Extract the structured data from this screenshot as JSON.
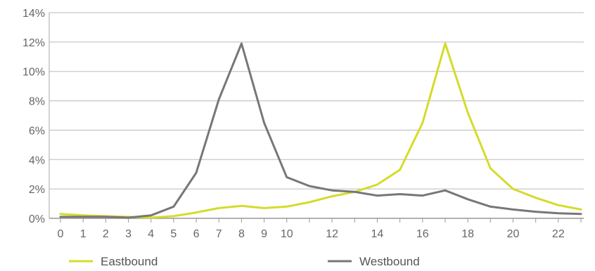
{
  "chart_data": {
    "type": "line",
    "title": "",
    "xlabel": "",
    "ylabel": "",
    "x": [
      0,
      1,
      2,
      3,
      4,
      5,
      6,
      7,
      8,
      9,
      10,
      11,
      12,
      13,
      14,
      15,
      16,
      17,
      18,
      19,
      20,
      21,
      22,
      23
    ],
    "xlim": [
      0,
      23
    ],
    "ylim": [
      0,
      14
    ],
    "x_ticks": [
      {
        "value": 0,
        "label": "0"
      },
      {
        "value": 1,
        "label": "1"
      },
      {
        "value": 2,
        "label": "2"
      },
      {
        "value": 3,
        "label": "3"
      },
      {
        "value": 4,
        "label": "4"
      },
      {
        "value": 5,
        "label": "5"
      },
      {
        "value": 6,
        "label": "6"
      },
      {
        "value": 7,
        "label": "7"
      },
      {
        "value": 8,
        "label": "8"
      },
      {
        "value": 9,
        "label": "9"
      },
      {
        "value": 10,
        "label": "10"
      },
      {
        "value": 12,
        "label": "12"
      },
      {
        "value": 14,
        "label": "14"
      },
      {
        "value": 16,
        "label": "16"
      },
      {
        "value": 18,
        "label": "18"
      },
      {
        "value": 20,
        "label": "20"
      },
      {
        "value": 22,
        "label": "22"
      }
    ],
    "y_ticks": [
      {
        "value": 0,
        "label": "0%"
      },
      {
        "value": 2,
        "label": "2%"
      },
      {
        "value": 4,
        "label": "4%"
      },
      {
        "value": 6,
        "label": "6%"
      },
      {
        "value": 8,
        "label": "8%"
      },
      {
        "value": 10,
        "label": "10%"
      },
      {
        "value": 12,
        "label": "12%"
      },
      {
        "value": 14,
        "label": "14%"
      }
    ],
    "grid": "horizontal",
    "legend_position": "bottom",
    "series": [
      {
        "name": "Eastbound",
        "color": "#d4dc2a",
        "values": [
          0.3,
          0.2,
          0.15,
          0.1,
          0.05,
          0.15,
          0.4,
          0.7,
          0.85,
          0.7,
          0.8,
          1.1,
          1.5,
          1.8,
          2.3,
          3.3,
          6.5,
          11.9,
          7.2,
          3.4,
          2.0,
          1.4,
          0.9,
          0.6
        ]
      },
      {
        "name": "Westbound",
        "color": "#777777",
        "values": [
          0.1,
          0.1,
          0.1,
          0.05,
          0.2,
          0.8,
          3.1,
          8.1,
          11.9,
          6.5,
          2.8,
          2.2,
          1.9,
          1.8,
          1.55,
          1.65,
          1.55,
          1.9,
          1.3,
          0.8,
          0.6,
          0.45,
          0.35,
          0.3
        ]
      }
    ]
  }
}
